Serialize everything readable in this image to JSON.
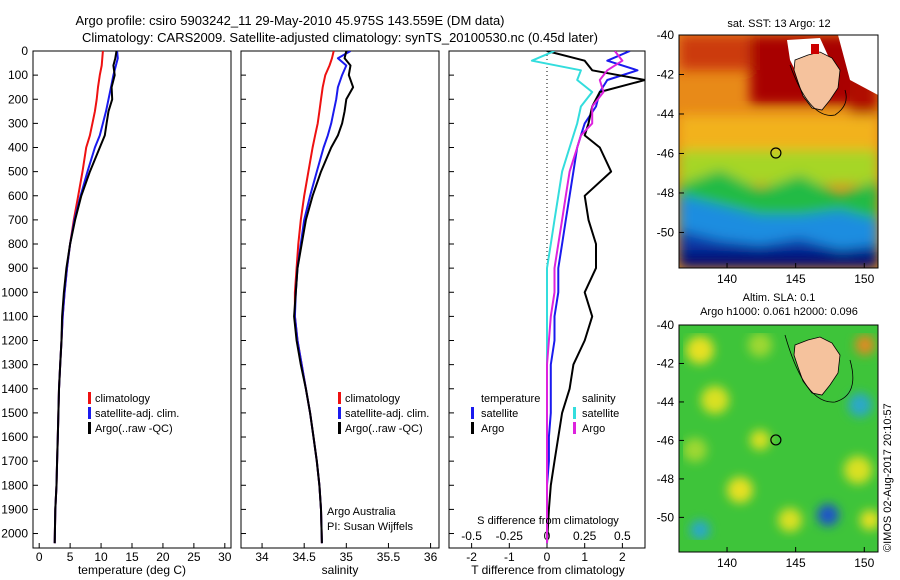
{
  "figure": {
    "title_line1": "Argo profile: csiro 5903242_11 29-May-2010 45.975S 143.559E (DM data)",
    "title_line2": "Climatology: CARS2009. Satellite-adjusted climatology: synTS_20100530.nc (0.45d later)",
    "footer": "©IMOS 02-Aug-2017 20:10:57",
    "credit_line1": "Argo Australia",
    "credit_line2": "PI: Susan Wijffels"
  },
  "colors": {
    "climatology": "#ee1111",
    "satellite": "#1a1aee",
    "argo": "#000000",
    "s_sat": "#33dddd",
    "s_argo": "#dd22dd"
  },
  "chart_data": [
    {
      "type": "line",
      "id": "temperature",
      "xlabel": "temperature (deg C)",
      "ylabel": "",
      "xlim": [
        -1,
        31
      ],
      "ylim": [
        2060,
        0
      ],
      "xticks": [
        0,
        5,
        10,
        15,
        20,
        25,
        30
      ],
      "yticks": [
        0,
        100,
        200,
        300,
        400,
        500,
        600,
        700,
        800,
        900,
        1000,
        1100,
        1200,
        1300,
        1400,
        1500,
        1600,
        1700,
        1800,
        1900,
        2000
      ],
      "legend_position": "center",
      "series": [
        {
          "name": "climatology",
          "color": "#ee1111",
          "x": [
            10.3,
            10.2,
            10.1,
            9.8,
            9.5,
            9.3,
            9.0,
            8.6,
            8.2,
            7.6,
            7.0,
            6.3,
            5.6,
            5.0,
            4.5,
            4.1,
            3.8,
            3.6,
            3.4,
            3.2,
            3.1,
            3.0,
            2.9,
            2.8,
            2.6,
            2.5
          ],
          "y": [
            0,
            30,
            60,
            100,
            150,
            200,
            250,
            300,
            350,
            400,
            500,
            600,
            700,
            800,
            900,
            1000,
            1100,
            1200,
            1300,
            1400,
            1500,
            1600,
            1700,
            1800,
            1900,
            2040
          ]
        },
        {
          "name": "satellite-adj. clim.",
          "color": "#1a1aee",
          "x": [
            12.6,
            12.7,
            12.4,
            12.0,
            11.6,
            11.2,
            10.8,
            10.3,
            9.8,
            9.0,
            7.8,
            6.7,
            5.7,
            5.0,
            4.5,
            4.1,
            3.8,
            3.6,
            3.4,
            3.2,
            3.1,
            3.0,
            2.9,
            2.8,
            2.6,
            2.5
          ],
          "y": [
            0,
            30,
            60,
            100,
            150,
            200,
            250,
            300,
            350,
            400,
            500,
            600,
            700,
            800,
            900,
            1000,
            1100,
            1200,
            1300,
            1400,
            1500,
            1600,
            1700,
            1800,
            1900,
            2040
          ]
        },
        {
          "name": "Argo(..raw -QC)",
          "color": "#000000",
          "x": [
            12.5,
            12.3,
            12.0,
            12.2,
            11.7,
            11.8,
            11.2,
            10.9,
            10.6,
            9.8,
            8.2,
            6.8,
            5.8,
            5.0,
            4.4,
            4.0,
            3.7,
            3.6,
            3.4,
            3.2,
            3.1,
            3.0,
            2.9,
            2.8,
            2.6,
            2.5
          ],
          "y": [
            0,
            30,
            60,
            100,
            150,
            200,
            250,
            300,
            350,
            400,
            500,
            600,
            700,
            800,
            900,
            1000,
            1100,
            1200,
            1300,
            1400,
            1500,
            1600,
            1700,
            1800,
            1900,
            2040
          ]
        }
      ]
    },
    {
      "type": "line",
      "id": "salinity",
      "xlabel": "salinity",
      "ylabel": "",
      "xlim": [
        33.75,
        36.1
      ],
      "ylim": [
        2060,
        0
      ],
      "xticks": [
        34,
        34.5,
        35,
        35.5,
        36
      ],
      "legend_position": "center",
      "series": [
        {
          "name": "climatology",
          "color": "#ee1111",
          "x": [
            34.85,
            34.83,
            34.8,
            34.75,
            34.72,
            34.7,
            34.68,
            34.66,
            34.63,
            34.6,
            34.55,
            34.5,
            34.46,
            34.43,
            34.41,
            34.39,
            34.39,
            34.42,
            34.47,
            34.52,
            34.57,
            34.61,
            34.65,
            34.68,
            34.7,
            34.71
          ],
          "y": [
            0,
            30,
            60,
            100,
            150,
            200,
            250,
            300,
            350,
            400,
            500,
            600,
            700,
            800,
            900,
            1000,
            1100,
            1200,
            1300,
            1400,
            1500,
            1600,
            1700,
            1800,
            1900,
            2040
          ]
        },
        {
          "name": "satellite-adj. clim.",
          "color": "#1a1aee",
          "x": [
            35.05,
            34.9,
            35.0,
            34.95,
            34.9,
            34.88,
            34.85,
            34.82,
            34.78,
            34.73,
            34.65,
            34.57,
            34.5,
            34.46,
            34.42,
            34.4,
            34.39,
            34.42,
            34.47,
            34.52,
            34.57,
            34.61,
            34.65,
            34.68,
            34.7,
            34.71
          ],
          "y": [
            0,
            30,
            60,
            100,
            150,
            200,
            250,
            300,
            350,
            400,
            500,
            600,
            700,
            800,
            900,
            1000,
            1100,
            1200,
            1300,
            1400,
            1500,
            1600,
            1700,
            1800,
            1900,
            2040
          ]
        },
        {
          "name": "Argo(..raw -QC)",
          "color": "#000000",
          "x": [
            35.0,
            34.98,
            35.05,
            35.03,
            35.08,
            35.0,
            34.98,
            34.95,
            34.9,
            34.82,
            34.7,
            34.6,
            34.52,
            34.47,
            34.42,
            34.4,
            34.38,
            34.41,
            34.46,
            34.52,
            34.57,
            34.61,
            34.65,
            34.68,
            34.7,
            34.71
          ],
          "y": [
            0,
            30,
            60,
            100,
            150,
            200,
            250,
            300,
            350,
            400,
            500,
            600,
            700,
            800,
            900,
            1000,
            1100,
            1200,
            1300,
            1400,
            1500,
            1600,
            1700,
            1800,
            1900,
            2040
          ]
        }
      ]
    },
    {
      "type": "line",
      "id": "differences",
      "xlabel": "T difference from climatology",
      "xlabel_top": "S difference from climatology",
      "xlim": [
        -2.6,
        2.6
      ],
      "ylim": [
        2060,
        0
      ],
      "xticks": [
        -2,
        -1,
        0,
        1,
        2
      ],
      "xticks_s": [
        "-0.5",
        "-0.25",
        "0",
        "0.25",
        "0.5"
      ],
      "legend": {
        "col1_head": "temperature",
        "col2_head": "salinity",
        "satellite": "satellite",
        "argo": "Argo"
      },
      "series": [
        {
          "name": "temperature satellite",
          "color": "#1a1aee",
          "x": [
            2.2,
            1.6,
            2.4,
            1.6,
            1.4,
            1.3,
            1.0,
            0.9,
            0.8,
            0.7,
            0.6,
            0.5,
            0.4,
            0.3,
            0.3,
            0.2,
            0.2,
            0.1,
            0.1,
            0.1,
            0.05,
            0.05,
            0.0,
            0.0,
            0.0
          ],
          "y": [
            0,
            40,
            80,
            120,
            170,
            230,
            300,
            350,
            400,
            500,
            600,
            700,
            800,
            900,
            1000,
            1100,
            1200,
            1300,
            1400,
            1500,
            1600,
            1700,
            1800,
            1900,
            2040
          ]
        },
        {
          "name": "temperature Argo",
          "color": "#000000",
          "x": [
            0.0,
            1.0,
            1.2,
            2.6,
            1.4,
            1.2,
            1.1,
            1.0,
            1.4,
            1.7,
            1.0,
            1.1,
            1.3,
            1.3,
            1.0,
            1.2,
            1.0,
            0.7,
            0.6,
            0.4,
            0.3,
            0.2,
            0.1,
            0.05,
            0.0
          ],
          "y": [
            0,
            40,
            80,
            120,
            170,
            230,
            300,
            350,
            400,
            500,
            600,
            700,
            800,
            900,
            1000,
            1100,
            1200,
            1300,
            1400,
            1500,
            1600,
            1700,
            1800,
            1900,
            2040
          ]
        },
        {
          "name": "salinity satellite",
          "color": "#33dddd",
          "x": [
            0.2,
            -0.4,
            0.9,
            0.8,
            1.2,
            0.9,
            0.8,
            0.7,
            0.6,
            0.4,
            0.3,
            0.2,
            0.1,
            0.0,
            0.0,
            0.0,
            0.0,
            0.0,
            0.0,
            0.0,
            0.0,
            0.0,
            0.0,
            0.0,
            0.0
          ],
          "y": [
            0,
            40,
            80,
            120,
            170,
            230,
            300,
            350,
            400,
            500,
            600,
            700,
            800,
            900,
            1000,
            1100,
            1200,
            1300,
            1400,
            1500,
            1600,
            1700,
            1800,
            1900,
            2040
          ]
        },
        {
          "name": "salinity Argo",
          "color": "#dd22dd",
          "x": [
            1.8,
            2.0,
            1.6,
            1.4,
            1.5,
            1.2,
            1.2,
            0.9,
            0.8,
            0.6,
            0.5,
            0.4,
            0.3,
            0.2,
            0.2,
            0.1,
            0.05,
            0.0,
            0.0,
            0.0,
            0.0,
            0.0,
            0.0,
            0.0,
            0.0
          ],
          "y": [
            0,
            40,
            80,
            120,
            170,
            230,
            300,
            350,
            400,
            500,
            600,
            700,
            800,
            900,
            1000,
            1100,
            1200,
            1300,
            1400,
            1500,
            1600,
            1700,
            1800,
            1900,
            2040
          ]
        }
      ]
    },
    {
      "type": "heatmap",
      "id": "sst_map",
      "title": "sat. SST: 13 Argo: 12",
      "xlim": [
        136.5,
        151
      ],
      "ylim": [
        -51.8,
        -40
      ],
      "xticks": [
        140,
        145,
        150
      ],
      "yticks": [
        -40,
        -42,
        -44,
        -46,
        -48,
        -50
      ],
      "marker": {
        "lon": 143.559,
        "lat": -45.975
      }
    },
    {
      "type": "heatmap",
      "id": "sla_map",
      "title": "Altim. SLA: 0.1",
      "subtitle": "Argo h1000: 0.061 h2000: 0.096",
      "xlim": [
        136.5,
        151
      ],
      "ylim": [
        -51.8,
        -40
      ],
      "xticks": [
        140,
        145,
        150
      ],
      "yticks": [
        -40,
        -42,
        -44,
        -46,
        -48,
        -50
      ],
      "marker": {
        "lon": 143.559,
        "lat": -45.975
      }
    }
  ]
}
